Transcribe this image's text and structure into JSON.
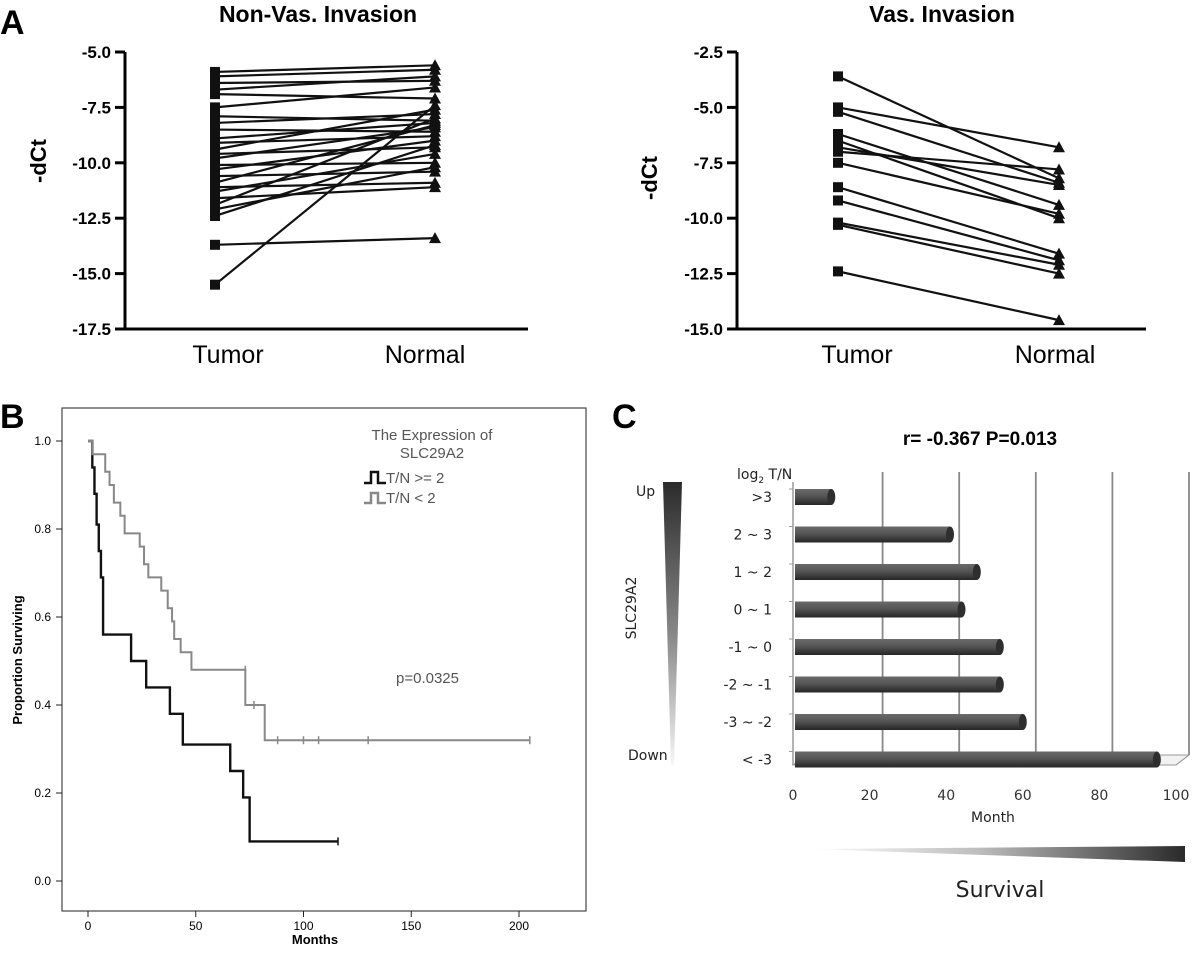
{
  "panel_labels": [
    "A",
    "B",
    "C"
  ],
  "chart_data": [
    {
      "panel": "A",
      "type": "line",
      "title": "Non-Vas. Invasion",
      "ylabel": "-dCt",
      "categories": [
        "Tumor",
        "Normal"
      ],
      "ylim": [
        -17.5,
        -5.0
      ],
      "yticks": [
        "-5.0",
        "-7.5",
        "-10.0",
        "-12.5",
        "-15.0",
        "-17.5"
      ],
      "ytick_values": [
        -5.0,
        -7.5,
        -10.0,
        -12.5,
        -15.0,
        -17.5
      ],
      "markers": [
        "square",
        "triangle"
      ],
      "pairs": [
        [
          -5.9,
          -5.6
        ],
        [
          -6.1,
          -5.8
        ],
        [
          -6.4,
          -6.3
        ],
        [
          -6.7,
          -6.1
        ],
        [
          -6.9,
          -7.1
        ],
        [
          -7.5,
          -6.6
        ],
        [
          -7.9,
          -8.1
        ],
        [
          -8.2,
          -7.8
        ],
        [
          -8.5,
          -8.6
        ],
        [
          -8.9,
          -8.2
        ],
        [
          -9.1,
          -8.8
        ],
        [
          -9.4,
          -7.6
        ],
        [
          -9.6,
          -9.3
        ],
        [
          -9.8,
          -8.4
        ],
        [
          -10.1,
          -10.0
        ],
        [
          -10.3,
          -9.0
        ],
        [
          -10.6,
          -10.4
        ],
        [
          -10.9,
          -8.3
        ],
        [
          -11.1,
          -10.9
        ],
        [
          -11.3,
          -9.6
        ],
        [
          -11.6,
          -11.1
        ],
        [
          -11.9,
          -8.0
        ],
        [
          -12.1,
          -10.2
        ],
        [
          -12.4,
          -9.2
        ],
        [
          -13.7,
          -13.4
        ],
        [
          -15.5,
          -7.4
        ]
      ]
    },
    {
      "panel": "A",
      "type": "line",
      "title": "Vas. Invasion",
      "ylabel": "-dCt",
      "categories": [
        "Tumor",
        "Normal"
      ],
      "ylim": [
        -15.0,
        -2.5
      ],
      "yticks": [
        "-2.5",
        "-5.0",
        "-7.5",
        "-10.0",
        "-12.5",
        "-15.0"
      ],
      "ytick_values": [
        -2.5,
        -5.0,
        -7.5,
        -10.0,
        -12.5,
        -15.0
      ],
      "markers": [
        "square",
        "triangle"
      ],
      "pairs": [
        [
          -3.6,
          -8.2
        ],
        [
          -5.0,
          -6.8
        ],
        [
          -5.2,
          -8.4
        ],
        [
          -6.2,
          -9.4
        ],
        [
          -6.5,
          -10.0
        ],
        [
          -6.8,
          -8.5
        ],
        [
          -7.0,
          -7.8
        ],
        [
          -7.5,
          -9.8
        ],
        [
          -8.6,
          -11.6
        ],
        [
          -9.2,
          -11.9
        ],
        [
          -10.2,
          -12.1
        ],
        [
          -10.3,
          -12.5
        ],
        [
          -12.4,
          -14.6
        ]
      ]
    },
    {
      "panel": "B",
      "type": "line",
      "subtype": "kaplan-meier",
      "xlabel": "Months",
      "ylabel": "Proportion Surviving",
      "xlim": [
        0,
        205
      ],
      "ylim": [
        0.0,
        1.0
      ],
      "xticks": [
        "0",
        "50",
        "100",
        "150",
        "200"
      ],
      "xtick_values": [
        0,
        50,
        100,
        150,
        200
      ],
      "yticks": [
        "0.0",
        "0.2",
        "0.4",
        "0.6",
        "0.8",
        "1.0"
      ],
      "ytick_values": [
        0.0,
        0.2,
        0.4,
        0.6,
        0.8,
        1.0
      ],
      "legend_title": "The Expression of SLC29A2",
      "legend_title_lines": [
        "The Expression of",
        "SLC29A2"
      ],
      "annotation": "p=0.0325",
      "series": [
        {
          "name": "T/N >= 2",
          "color": "#111111",
          "steps": [
            [
              0,
              1.0
            ],
            [
              2,
              0.94
            ],
            [
              3,
              0.88
            ],
            [
              4,
              0.81
            ],
            [
              5,
              0.75
            ],
            [
              6,
              0.69
            ],
            [
              7,
              0.56
            ],
            [
              20,
              0.5
            ],
            [
              27,
              0.44
            ],
            [
              38,
              0.38
            ],
            [
              44,
              0.31
            ],
            [
              66,
              0.25
            ],
            [
              72,
              0.19
            ],
            [
              75,
              0.09
            ],
            [
              116,
              0.09
            ]
          ],
          "censored": [
            [
              116,
              0.09
            ]
          ]
        },
        {
          "name": "T/N < 2",
          "color": "#888888",
          "steps": [
            [
              0,
              1.0
            ],
            [
              2,
              0.97
            ],
            [
              8,
              0.93
            ],
            [
              10,
              0.9
            ],
            [
              12,
              0.86
            ],
            [
              15,
              0.83
            ],
            [
              17,
              0.79
            ],
            [
              24,
              0.76
            ],
            [
              26,
              0.72
            ],
            [
              28,
              0.69
            ],
            [
              34,
              0.66
            ],
            [
              37,
              0.62
            ],
            [
              39,
              0.59
            ],
            [
              40,
              0.55
            ],
            [
              43,
              0.52
            ],
            [
              48,
              0.48
            ],
            [
              73,
              0.4
            ],
            [
              82,
              0.32
            ],
            [
              205,
              0.32
            ]
          ],
          "censored": [
            [
              73,
              0.48
            ],
            [
              77,
              0.4
            ],
            [
              88,
              0.32
            ],
            [
              100,
              0.32
            ],
            [
              107,
              0.32
            ],
            [
              130,
              0.32
            ],
            [
              205,
              0.32
            ]
          ]
        }
      ]
    },
    {
      "panel": "C",
      "type": "bar",
      "orientation": "horizontal",
      "annotation": "r= -0.367    P=0.013",
      "category_header": "log₂ T/N",
      "xlabel": "Month",
      "xlim": [
        0,
        100
      ],
      "xticks": [
        "0",
        "20",
        "40",
        "60",
        "80",
        "100"
      ],
      "xtick_values": [
        0,
        20,
        40,
        60,
        80,
        100
      ],
      "categories": [
        ">3",
        "2 ~ 3",
        "1 ~ 2",
        "0 ~ 1",
        "-1 ~ 0",
        "-2 ~ -1",
        "-3 ~ -2",
        "< -3"
      ],
      "values": [
        10,
        41,
        48,
        44,
        54,
        54,
        60,
        95
      ],
      "color": "#555555",
      "side_label": "SLC29A2",
      "side_top": "Up",
      "side_bottom": "Down",
      "bottom_label": "Survival"
    }
  ]
}
